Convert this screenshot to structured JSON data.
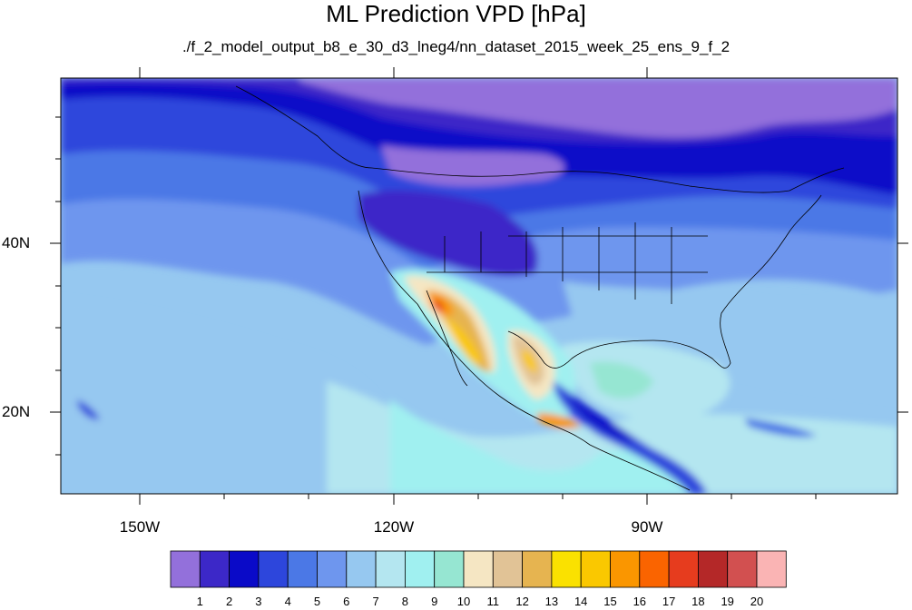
{
  "title": "ML Prediction VPD [hPa]",
  "subtitle": "./f_2_model_output_b8_e_30_d3_lneg4/nn_dataset_2015_week_25_ens_9_f_2",
  "axes": {
    "lon_labels": [
      "150W",
      "120W",
      "90W"
    ],
    "lat_labels": [
      "40N",
      "20N"
    ],
    "lon_range": [
      -160,
      -57
    ],
    "lat_range": [
      10,
      59
    ]
  },
  "colorbar": {
    "labels": [
      "1",
      "2",
      "3",
      "4",
      "5",
      "6",
      "7",
      "8",
      "9",
      "10",
      "11",
      "12",
      "13",
      "14",
      "15",
      "16",
      "17",
      "18",
      "19",
      "20"
    ],
    "colors": [
      "#9370db",
      "#3c28c8",
      "#0a0ac8",
      "#2d46dc",
      "#4b78e6",
      "#6e96ee",
      "#96c8f0",
      "#b4e6f0",
      "#a0f0f0",
      "#96e6d2",
      "#f5e6c3",
      "#e1c396",
      "#e6b450",
      "#fae100",
      "#fac800",
      "#fa9600",
      "#fa6400",
      "#e63c1e",
      "#b42828",
      "#d25050",
      "#fab4b4"
    ]
  }
}
